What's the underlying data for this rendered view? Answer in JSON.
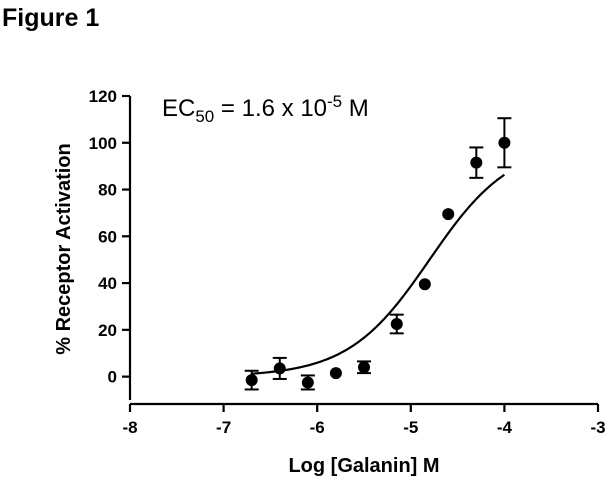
{
  "figure_label": "Figure 1",
  "chart_data": {
    "type": "scatter",
    "annotation": {
      "prefix": "EC",
      "subscript": "50",
      "middle": " = 1.6 x 10",
      "superscript": "-5",
      "suffix": " M"
    },
    "xlabel": "Log [Galanin] M",
    "ylabel": "% Receptor Activation",
    "xlim": [
      -8,
      -3
    ],
    "ylim": [
      -10,
      120
    ],
    "xticks": [
      -8,
      -7,
      -6,
      -5,
      -4,
      -3
    ],
    "yticks": [
      0,
      20,
      40,
      60,
      80,
      100,
      120
    ],
    "grid": false,
    "legend": "none",
    "points": {
      "x": [
        -6.7,
        -6.4,
        -6.1,
        -5.8,
        -5.5,
        -5.15,
        -4.85,
        -4.6,
        -4.3,
        -4.0
      ],
      "y": [
        -1.5,
        3.5,
        -2.5,
        1.5,
        4.0,
        22.5,
        39.5,
        69.5,
        91.5,
        100.0
      ],
      "err": [
        4.0,
        4.5,
        3.0,
        0.5,
        2.5,
        4.0,
        0.5,
        0.5,
        6.5,
        10.5
      ]
    },
    "fit_curve": {
      "model": "sigmoidal dose-response",
      "bottom": 0,
      "top": 100,
      "log_ec50": -4.8,
      "hill_slope": 1,
      "x_range": [
        -6.7,
        -4.0
      ]
    }
  }
}
